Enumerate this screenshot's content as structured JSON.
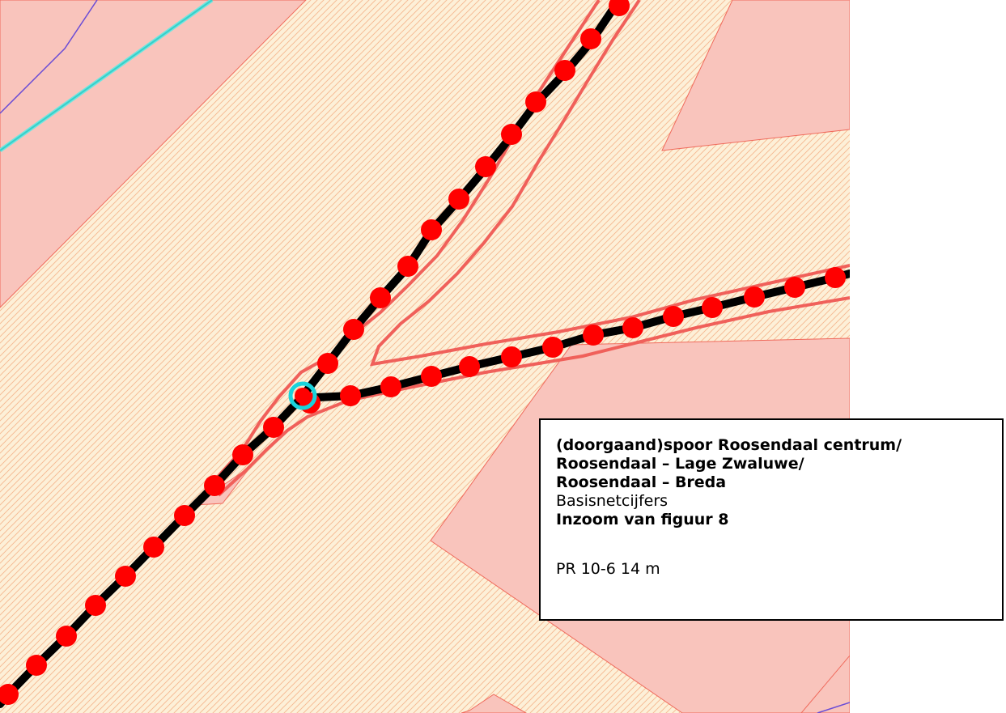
{
  "map": {
    "colors": {
      "hatch_background": "#fdf0d8",
      "hatch_line": "#f5b890",
      "zone_fill": "#f9c4bc",
      "zone_outline": "#f06a5c",
      "contour": "#f0605a",
      "track": "#000000",
      "marker": "#ff0000",
      "node_ring": "#19d3dc",
      "waterway": "#70e6e0",
      "boundary": "#6a4cd6"
    },
    "icons": {
      "node_marker": "circle-ring",
      "track_marker": "filled-circle"
    }
  },
  "legend": {
    "title_line1": "(doorgaand)spoor Roosendaal centrum/",
    "title_line2": "Roosendaal – Lage Zwaluwe/",
    "title_line3": "Roosendaal – Breda",
    "subtitle": "Basisnetcijfers",
    "zoom_note": "Inzoom van figuur 8",
    "pr_value": "PR 10-6 14 m"
  }
}
